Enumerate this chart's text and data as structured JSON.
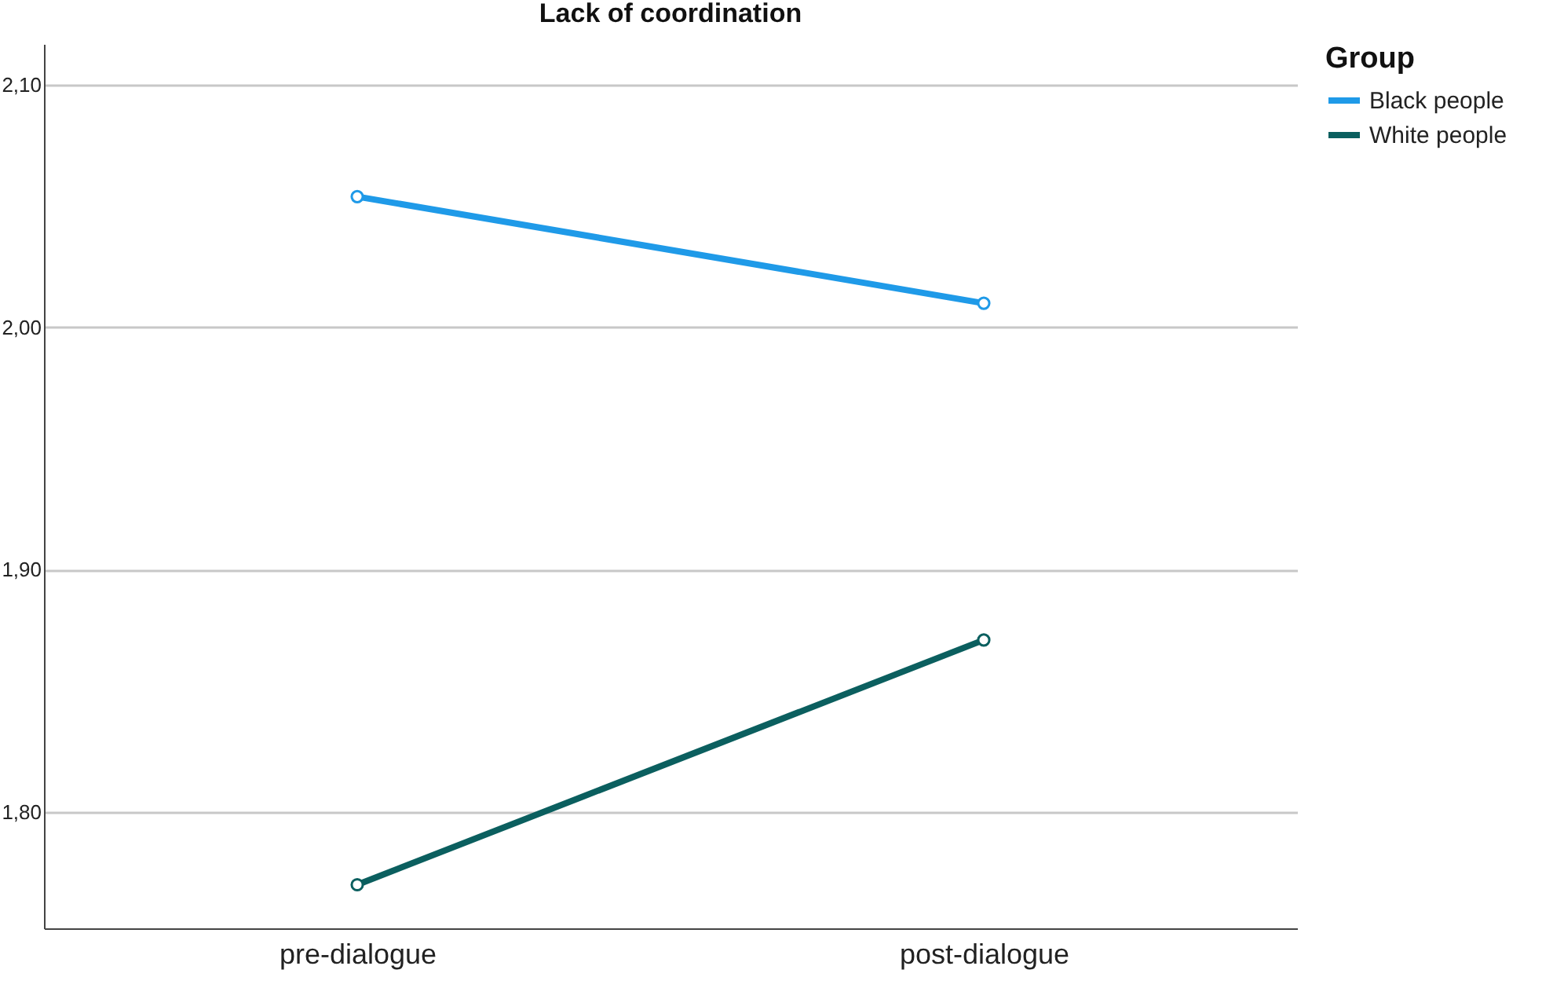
{
  "chart_data": {
    "type": "line",
    "title": "Lack of coordination",
    "legend_title": "Group",
    "categories": [
      "pre-dialogue",
      "post-dialogue"
    ],
    "series": [
      {
        "name": "Black people",
        "color": "#1f9ae8",
        "values": [
          2.054,
          2.01
        ]
      },
      {
        "name": "White people",
        "color": "#0b5f5f",
        "values": [
          1.77,
          1.871
        ]
      }
    ],
    "ylim": [
      1.752,
      2.117
    ],
    "yticks": [
      {
        "value": 1.8,
        "label": "1,80"
      },
      {
        "value": 1.9,
        "label": "1,90"
      },
      {
        "value": 2.0,
        "label": "2,00"
      },
      {
        "value": 2.1,
        "label": "2,10"
      }
    ],
    "grid": "y",
    "legend": "top right",
    "marker": "circle",
    "line_style": "solid"
  }
}
